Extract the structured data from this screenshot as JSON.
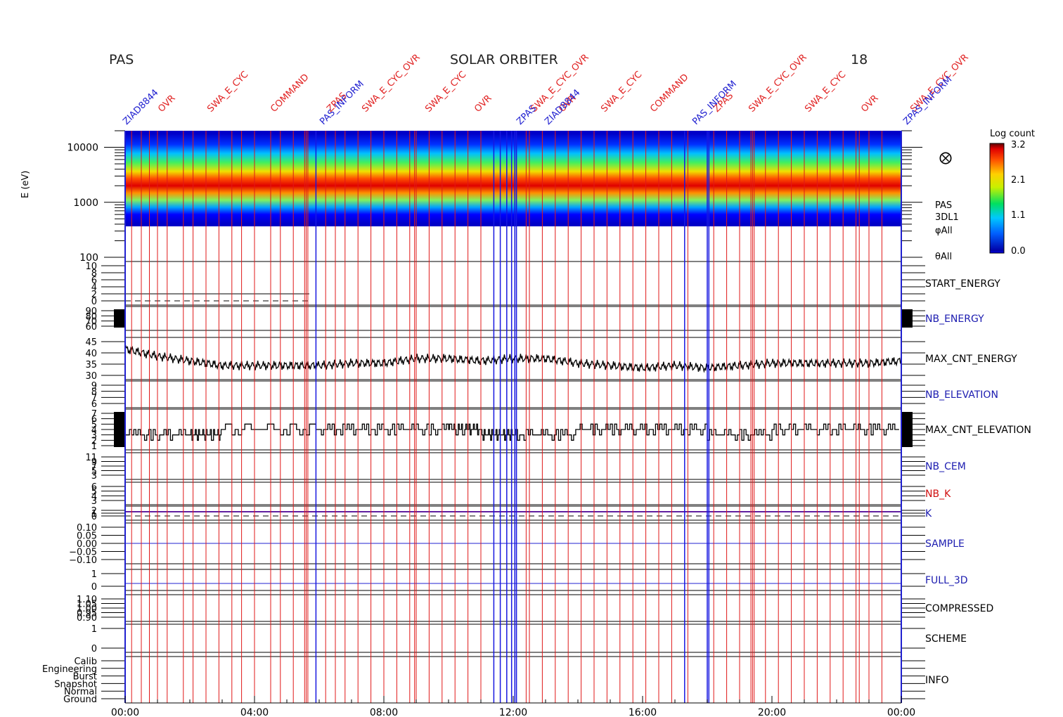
{
  "header": {
    "left_label": "PAS",
    "center_title": "SOLAR ORBITER",
    "right_label": "18"
  },
  "top_annotations": {
    "red": [
      "OVR",
      "SWA_E_CYC",
      "COMMAND",
      "ZPAS",
      "SWA_E_CYC_OVR",
      "SWA_E_CYC",
      "OVR",
      "SWA_E_CYC_OVR"
    ],
    "blue": [
      "ZIAD8844",
      "PAS_INFORM",
      "ZPAS",
      "ZIAD8844",
      "PAS_INFORM",
      "ZPAS_INFORM"
    ]
  },
  "spectrogram": {
    "ylabel": "E (eV)",
    "y_ticks": [
      "10000",
      "1000",
      "100"
    ],
    "colorbar_title": "Log count",
    "colorbar_ticks": [
      "3.2",
      "2.1",
      "1.1",
      "0.0"
    ],
    "product_labels": [
      "PAS",
      "3DL1",
      "φAll",
      "θAll"
    ],
    "symbol": "⨂"
  },
  "panels": [
    {
      "label": "START_ENERGY",
      "color": "#000000",
      "ticks": [
        "10",
        "8",
        "6",
        "4",
        "2",
        "0"
      ]
    },
    {
      "label": "NB_ENERGY",
      "color": "#1c1cb0",
      "ticks": [
        "90",
        "80",
        "70",
        "60"
      ]
    },
    {
      "label": "MAX_CNT_ENERGY",
      "color": "#000000",
      "ticks": [
        "45",
        "40",
        "35",
        "30"
      ]
    },
    {
      "label": "NB_ELEVATION",
      "color": "#1c1cb0",
      "ticks": [
        "9",
        "8",
        "7",
        "6"
      ]
    },
    {
      "label": "MAX_CNT_ELEVATION",
      "color": "#000000",
      "ticks": [
        "7",
        "6",
        "5",
        "4",
        "3",
        "2",
        "1"
      ]
    },
    {
      "label": "NB_CEM",
      "color": "#1c1cb0",
      "ticks": [
        "11",
        "9",
        "7",
        "5",
        "3"
      ]
    },
    {
      "label": "NB_K",
      "color": "#d01010",
      "ticks": [
        "6",
        "5",
        "4",
        "3"
      ]
    },
    {
      "label": "K",
      "color": "#1c1cb0",
      "ticks": [
        "2",
        "1",
        "0"
      ]
    },
    {
      "label": "SAMPLE",
      "color": "#1c1cb0",
      "ticks": [
        "0.10",
        "0.05",
        "0.00",
        "−0.05",
        "−0.10"
      ]
    },
    {
      "label": "FULL_3D",
      "color": "#1c1cb0",
      "ticks": [
        "1",
        "0"
      ]
    },
    {
      "label": "COMPRESSED",
      "color": "#000000",
      "ticks": [
        "1.10",
        "1.05",
        "1.00",
        "0.95",
        "0.90"
      ]
    },
    {
      "label": "SCHEME",
      "color": "#000000",
      "ticks": [
        "1",
        "0"
      ]
    },
    {
      "label": "INFO",
      "color": "#000000",
      "ticks": [
        "Calib",
        "Engineering",
        "Burst",
        "Snapshot",
        "Normal",
        "Ground"
      ]
    }
  ],
  "x_ticks": [
    "00:00",
    "04:00",
    "08:00",
    "12:00",
    "16:00",
    "20:00",
    "00:00"
  ],
  "colors": {
    "event_red": "#e01818",
    "event_blue": "#1818e0",
    "trace": "#000000"
  },
  "chart_data": {
    "type": "line",
    "x_range_hours": [
      0,
      24
    ],
    "spectrogram_energy_range_eV": [
      100,
      20000
    ],
    "color_scale_log_count": [
      0.0,
      3.2
    ],
    "series": [
      {
        "name": "MAX_CNT_ENERGY",
        "x": [
          0,
          1,
          2,
          3,
          4,
          5,
          6,
          7,
          8,
          9,
          10,
          11,
          12,
          13,
          14,
          15,
          16,
          17,
          18,
          19,
          20,
          21,
          22,
          23,
          24
        ],
        "values": [
          41,
          38,
          36,
          34,
          34,
          34,
          34,
          35,
          35,
          37,
          37,
          36,
          37,
          37,
          35,
          34,
          33,
          34,
          33,
          34,
          35,
          35,
          35,
          35,
          36
        ]
      },
      {
        "name": "MAX_CNT_ELEVATION",
        "x": [
          0,
          2,
          3,
          6,
          8,
          10,
          11,
          12,
          14,
          16,
          18,
          20,
          22,
          24
        ],
        "values": [
          3,
          3,
          4,
          4,
          4,
          4,
          3,
          3,
          4,
          4,
          3,
          4,
          4,
          3
        ]
      }
    ],
    "event_lines_hours": {
      "red": [
        0.2,
        0.5,
        0.75,
        1.0,
        1.3,
        1.8,
        2.1,
        2.5,
        2.9,
        3.3,
        3.6,
        4.0,
        4.5,
        4.8,
        5.2,
        5.55,
        5.6,
        5.65,
        6.2,
        6.5,
        6.8,
        7.2,
        7.6,
        8.0,
        8.4,
        8.8,
        8.95,
        9.0,
        9.4,
        9.8,
        10.2,
        10.6,
        11.0,
        12.4,
        12.5,
        12.9,
        13.3,
        13.7,
        14.1,
        14.5,
        14.9,
        15.3,
        15.7,
        16.1,
        16.5,
        16.9,
        17.4,
        18.2,
        18.6,
        19.0,
        19.35,
        19.4,
        19.45,
        19.8,
        20.2,
        20.6,
        21.0,
        21.4,
        21.8,
        22.2,
        22.6,
        22.7,
        23.0,
        23.4
      ],
      "blue": [
        5.9,
        11.4,
        11.6,
        11.8,
        11.95,
        12.05,
        12.1,
        17.3,
        18.0,
        18.05
      ]
    }
  }
}
